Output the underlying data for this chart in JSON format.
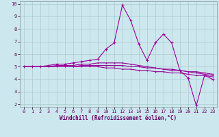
{
  "xlabel": "Windchill (Refroidissement éolien,°C)",
  "bg_color": "#cce8ee",
  "grid_color": "#aacccc",
  "line_color": "#990099",
  "xlim": [
    -0.5,
    23.5
  ],
  "ylim": [
    1.8,
    10.2
  ],
  "yticks": [
    2,
    3,
    4,
    5,
    6,
    7,
    8,
    9,
    10
  ],
  "xticks": [
    0,
    1,
    2,
    3,
    4,
    5,
    6,
    7,
    8,
    9,
    10,
    11,
    12,
    13,
    14,
    15,
    16,
    17,
    18,
    19,
    20,
    21,
    22,
    23
  ],
  "series": [
    [
      5.0,
      5.0,
      5.0,
      5.1,
      5.2,
      5.2,
      5.3,
      5.4,
      5.5,
      5.6,
      6.4,
      6.9,
      9.9,
      8.7,
      6.8,
      5.5,
      6.9,
      7.6,
      6.9,
      4.7,
      4.1,
      1.9,
      4.3,
      4.0
    ],
    [
      5.0,
      5.0,
      5.0,
      5.0,
      5.1,
      5.1,
      5.1,
      5.2,
      5.2,
      5.3,
      5.3,
      5.3,
      5.3,
      5.2,
      5.1,
      5.0,
      4.9,
      4.8,
      4.7,
      4.7,
      4.6,
      4.5,
      4.4,
      4.3
    ],
    [
      5.0,
      5.0,
      5.0,
      5.0,
      5.0,
      5.0,
      5.0,
      5.0,
      5.0,
      5.0,
      4.9,
      4.9,
      4.8,
      4.8,
      4.7,
      4.7,
      4.6,
      4.6,
      4.5,
      4.5,
      4.4,
      4.3,
      4.3,
      4.2
    ],
    [
      5.0,
      5.0,
      5.0,
      5.0,
      5.0,
      5.0,
      5.0,
      5.1,
      5.1,
      5.1,
      5.1,
      5.1,
      5.1,
      5.0,
      5.0,
      4.9,
      4.9,
      4.8,
      4.8,
      4.7,
      4.6,
      4.6,
      4.5,
      4.4
    ]
  ],
  "xlabel_fontsize": 5.5,
  "tick_fontsize": 5.0,
  "linewidth": 0.8,
  "marker_size": 2.5
}
